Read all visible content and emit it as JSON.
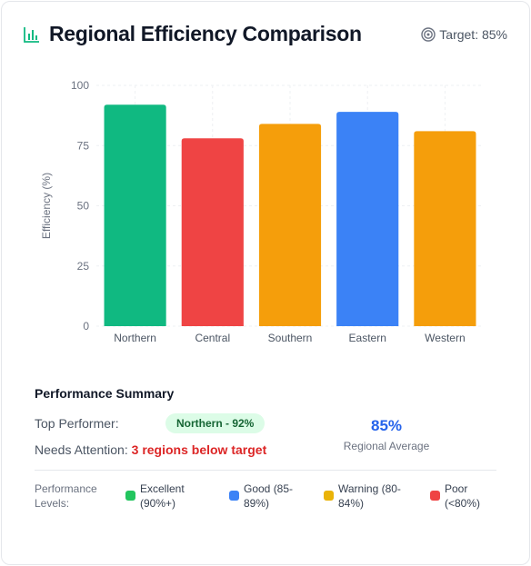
{
  "header": {
    "title": "Regional Efficiency Comparison",
    "target_label": "Target: 85%",
    "title_icon": "bar-chart-icon",
    "target_icon": "target-icon",
    "accent_color": "#10b981"
  },
  "chart_data": {
    "type": "bar",
    "categories": [
      "Northern",
      "Central",
      "Southern",
      "Eastern",
      "Western"
    ],
    "values": [
      92,
      78,
      84,
      89,
      81
    ],
    "colors": [
      "#10b981",
      "#ef4444",
      "#f59e0b",
      "#3b82f6",
      "#f59e0b"
    ],
    "ylabel": "Efficiency (%)",
    "xlabel": "",
    "ylim": [
      0,
      100
    ],
    "yticks": [
      0,
      25,
      50,
      75,
      100
    ],
    "grid": true
  },
  "summary": {
    "title": "Performance Summary",
    "top_performer_label": "Top Performer:",
    "top_performer_value": "Northern - 92%",
    "needs_attention_label": "Needs Attention:",
    "needs_attention_value": "3 regions below target",
    "avg_value": "85%",
    "avg_label": "Regional Average"
  },
  "legend": {
    "title": "Performance Levels:",
    "items": [
      {
        "label": "Excellent (90%+)",
        "color": "#22c55e"
      },
      {
        "label": "Good (85-89%)",
        "color": "#3b82f6"
      },
      {
        "label": "Warning (80-84%)",
        "color": "#eab308"
      },
      {
        "label": "Poor (<80%)",
        "color": "#ef4444"
      }
    ]
  }
}
